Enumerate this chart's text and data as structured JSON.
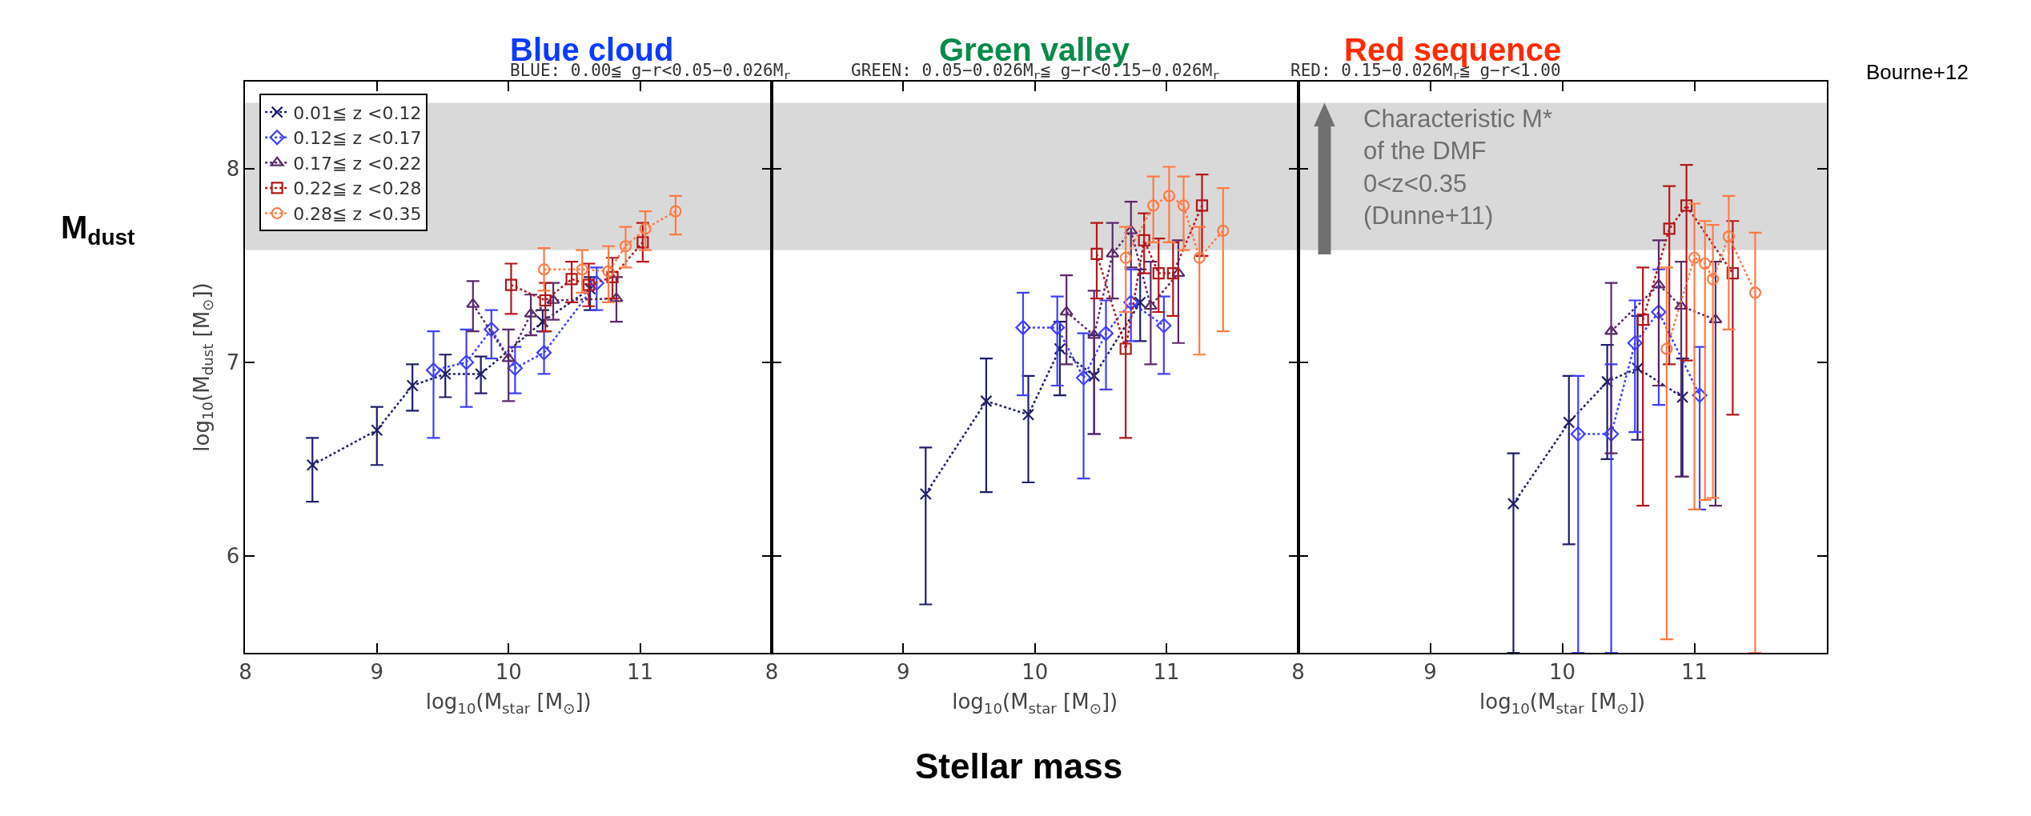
{
  "chart_data": [
    {
      "type": "line",
      "title": "Blue cloud",
      "subtitle": "BLUE: 0.00≦ g−r<0.05−0.026M$_{r}$",
      "xlabel": "log$_{10}$(M$_{star}$ [M$_{⊙}$])",
      "ylabel": "log$_{10}$(M$_{dust}$ [M$_{⊙}$])",
      "xlim": [
        8,
        12
      ],
      "xticks": [
        8,
        9,
        10,
        11
      ],
      "ylim": [
        5.5,
        8.45
      ],
      "yticks": [
        6,
        7,
        8
      ],
      "legend": "top left",
      "line_style": "dotted",
      "annotations": [
        "M$_{dust}$",
        "Stellar mass"
      ],
      "bands": [
        {
          "axis": "y",
          "from": 7.58,
          "to": 8.34,
          "color": "#d9d9d9"
        }
      ],
      "series": [
        {
          "name": "0.01≦ z <0.12",
          "color": "#1f1f6b",
          "marker": "cross",
          "x": [
            8.51,
            9.0,
            9.27,
            9.52,
            9.79,
            10.26,
            10.62
          ],
          "values": [
            6.47,
            6.65,
            6.88,
            6.94,
            6.94,
            7.21,
            7.38
          ],
          "errors": [
            [
              6.28,
              6.61
            ],
            [
              6.47,
              6.77
            ],
            [
              6.75,
              6.99
            ],
            [
              6.82,
              7.04
            ],
            [
              6.84,
              7.03
            ],
            [
              7.16,
              7.27
            ],
            [
              7.27,
              7.44
            ]
          ]
        },
        {
          "name": "0.12≦ z <0.17",
          "color": "#4040ff",
          "marker": "diamond",
          "x": [
            9.43,
            9.68,
            9.87,
            10.05,
            10.27,
            10.67
          ],
          "values": [
            6.96,
            7.0,
            7.17,
            6.97,
            7.05,
            7.41
          ],
          "errors": [
            [
              6.61,
              7.16
            ],
            [
              6.77,
              7.17
            ],
            [
              7.02,
              7.27
            ],
            [
              6.84,
              7.08
            ],
            [
              6.94,
              7.16
            ],
            [
              7.27,
              7.49
            ]
          ]
        },
        {
          "name": "0.17≦ z <0.22",
          "color": "#5b2a6a",
          "marker": "triangle",
          "x": [
            9.73,
            10.0,
            10.17,
            10.34,
            10.82
          ],
          "values": [
            7.3,
            7.02,
            7.25,
            7.32,
            7.33
          ],
          "errors": [
            [
              7.16,
              7.42
            ],
            [
              6.8,
              7.17
            ],
            [
              7.14,
              7.35
            ],
            [
              7.22,
              7.41
            ],
            [
              7.21,
              7.44
            ]
          ]
        },
        {
          "name": "0.22≦ z <0.28",
          "color": "#b3171b",
          "marker": "square",
          "x": [
            10.02,
            10.28,
            10.48,
            10.61,
            10.79,
            11.02
          ],
          "values": [
            7.4,
            7.32,
            7.43,
            7.4,
            7.44,
            7.62
          ],
          "errors": [
            [
              7.25,
              7.51
            ],
            [
              7.16,
              7.41
            ],
            [
              7.31,
              7.52
            ],
            [
              7.29,
              7.51
            ],
            [
              7.33,
              7.54
            ],
            [
              7.52,
              7.72
            ]
          ]
        },
        {
          "name": "0.28≦ z <0.35",
          "color": "#ff7b45",
          "marker": "circle",
          "x": [
            10.27,
            10.56,
            10.76,
            10.89,
            11.04,
            11.27
          ],
          "values": [
            7.48,
            7.48,
            7.47,
            7.6,
            7.69,
            7.78
          ],
          "errors": [
            [
              7.37,
              7.59
            ],
            [
              7.36,
              7.58
            ],
            [
              7.31,
              7.6
            ],
            [
              7.49,
              7.7
            ],
            [
              7.58,
              7.78
            ],
            [
              7.66,
              7.86
            ]
          ]
        }
      ]
    },
    {
      "type": "line",
      "title": "Green valley",
      "subtitle": "GREEN: 0.05−0.026M$_{r}$≦ g−r<0.15−0.026M$_{r}$",
      "xlabel": "log$_{10}$(M$_{star}$ [M$_{⊙}$])",
      "xlim": [
        8,
        12
      ],
      "xticks": [
        8,
        9,
        10,
        11
      ],
      "ylim": [
        5.5,
        8.45
      ],
      "yticks": [
        6,
        7,
        8
      ],
      "tick_labels": "x",
      "line_style": "dotted",
      "bands": [
        {
          "axis": "y",
          "from": 7.58,
          "to": 8.34,
          "color": "#d9d9d9"
        }
      ],
      "series": [
        {
          "color": "#1f1f6b",
          "marker": "cross",
          "x": [
            9.17,
            9.63,
            9.95,
            10.19,
            10.45,
            10.8
          ],
          "values": [
            6.32,
            6.8,
            6.73,
            7.07,
            6.93,
            7.31
          ],
          "errors": [
            [
              5.75,
              6.56
            ],
            [
              6.33,
              7.02
            ],
            [
              6.38,
              6.93
            ],
            [
              6.83,
              7.21
            ],
            [
              6.63,
              7.14
            ],
            [
              7.11,
              7.48
            ]
          ]
        },
        {
          "color": "#4040ff",
          "marker": "diamond",
          "x": [
            9.91,
            10.17,
            10.37,
            10.54,
            10.73,
            10.98
          ],
          "values": [
            7.18,
            7.18,
            6.92,
            7.15,
            7.31,
            7.19
          ],
          "errors": [
            [
              6.83,
              7.36
            ],
            [
              6.88,
              7.34
            ],
            [
              6.4,
              7.15
            ],
            [
              6.86,
              7.32
            ],
            [
              7.11,
              7.48
            ],
            [
              6.94,
              7.34
            ]
          ]
        },
        {
          "color": "#5b2a6a",
          "marker": "triangle",
          "x": [
            10.24,
            10.45,
            10.59,
            10.73,
            10.88,
            11.09
          ],
          "values": [
            7.26,
            7.14,
            7.56,
            7.68,
            7.29,
            7.46
          ],
          "errors": [
            [
              6.99,
              7.45
            ],
            [
              6.63,
              7.37
            ],
            [
              7.33,
              7.72
            ],
            [
              7.49,
              7.83
            ],
            [
              6.99,
              7.52
            ],
            [
              7.1,
              7.63
            ]
          ]
        },
        {
          "color": "#b3171b",
          "marker": "square",
          "x": [
            10.47,
            10.69,
            10.83,
            10.94,
            11.05,
            11.27
          ],
          "values": [
            7.56,
            7.07,
            7.63,
            7.46,
            7.46,
            7.81
          ],
          "errors": [
            [
              7.33,
              7.72
            ],
            [
              6.61,
              7.26
            ],
            [
              7.46,
              7.77
            ],
            [
              7.26,
              7.64
            ],
            [
              7.24,
              7.62
            ],
            [
              7.55,
              7.97
            ]
          ]
        },
        {
          "color": "#ff7b45",
          "marker": "circle",
          "x": [
            10.69,
            10.9,
            11.02,
            11.13,
            11.25,
            11.43
          ],
          "values": [
            7.54,
            7.81,
            7.86,
            7.81,
            7.54,
            7.68
          ],
          "errors": [
            [
              7.26,
              7.7
            ],
            [
              7.62,
              7.96
            ],
            [
              7.62,
              8.01
            ],
            [
              7.58,
              7.96
            ],
            [
              7.04,
              7.7
            ],
            [
              7.16,
              7.9
            ]
          ]
        }
      ]
    },
    {
      "type": "line",
      "title": "Red sequence",
      "subtitle": "RED: 0.15−0.026M$_{r}$≦ g−r<1.00",
      "xlabel": "log$_{10}$(M$_{star}$ [M$_{⊙}$])",
      "xlim": [
        8,
        12
      ],
      "xticks": [
        8,
        9,
        10,
        11
      ],
      "ylim": [
        5.5,
        8.45
      ],
      "yticks": [
        6,
        7,
        8
      ],
      "tick_labels": "x",
      "line_style": "dotted",
      "annotations": [
        "Bourne+12"
      ],
      "bands": [
        {
          "axis": "y",
          "from": 7.58,
          "to": 8.34,
          "color": "#d9d9d9",
          "label": "Characteristic M*\nof the DMF\n0<z<0.35\n(Dunne+11)"
        }
      ],
      "series": [
        {
          "color": "#1f1f6b",
          "marker": "cross",
          "x": [
            9.63,
            10.05,
            10.34,
            10.57,
            10.91
          ],
          "values": [
            6.27,
            6.69,
            6.9,
            6.97,
            6.82
          ],
          "errors": [
            [
              5.5,
              6.53
            ],
            [
              6.06,
              6.93
            ],
            [
              6.5,
              7.09
            ],
            [
              6.6,
              7.24
            ],
            [
              6.41,
              7.02
            ]
          ]
        },
        {
          "color": "#4040ff",
          "marker": "diamond",
          "x": [
            10.12,
            10.37,
            10.55,
            10.73,
            11.04
          ],
          "values": [
            6.63,
            6.63,
            7.1,
            7.26,
            6.83
          ],
          "errors": [
            [
              5.5,
              6.93
            ],
            [
              5.5,
              6.99
            ],
            [
              6.64,
              7.32
            ],
            [
              6.78,
              7.48
            ],
            [
              6.24,
              7.08
            ]
          ]
        },
        {
          "color": "#5b2a6a",
          "marker": "triangle",
          "x": [
            10.37,
            10.73,
            10.9,
            11.16
          ],
          "values": [
            7.16,
            7.4,
            7.29,
            7.22
          ],
          "errors": [
            [
              6.53,
              7.41
            ],
            [
              6.88,
              7.63
            ],
            [
              6.41,
              7.52
            ],
            [
              6.26,
              7.52
            ]
          ]
        },
        {
          "color": "#b3171b",
          "marker": "square",
          "x": [
            10.61,
            10.81,
            10.94,
            11.29
          ],
          "values": [
            7.22,
            7.69,
            7.81,
            7.46
          ],
          "errors": [
            [
              6.26,
              7.49
            ],
            [
              6.99,
              7.91
            ],
            [
              7.01,
              8.02
            ],
            [
              6.73,
              7.73
            ]
          ]
        },
        {
          "color": "#ff7b45",
          "marker": "circle",
          "x": [
            10.79,
            11.0,
            11.08,
            11.14,
            11.26,
            11.46
          ],
          "values": [
            7.07,
            7.54,
            7.51,
            7.43,
            7.65,
            7.36
          ],
          "errors": [
            [
              5.57,
              7.49
            ],
            [
              6.24,
              7.82
            ],
            [
              6.29,
              7.73
            ],
            [
              6.3,
              7.71
            ],
            [
              7.17,
              7.86
            ],
            [
              5.5,
              7.67
            ]
          ]
        }
      ]
    }
  ]
}
